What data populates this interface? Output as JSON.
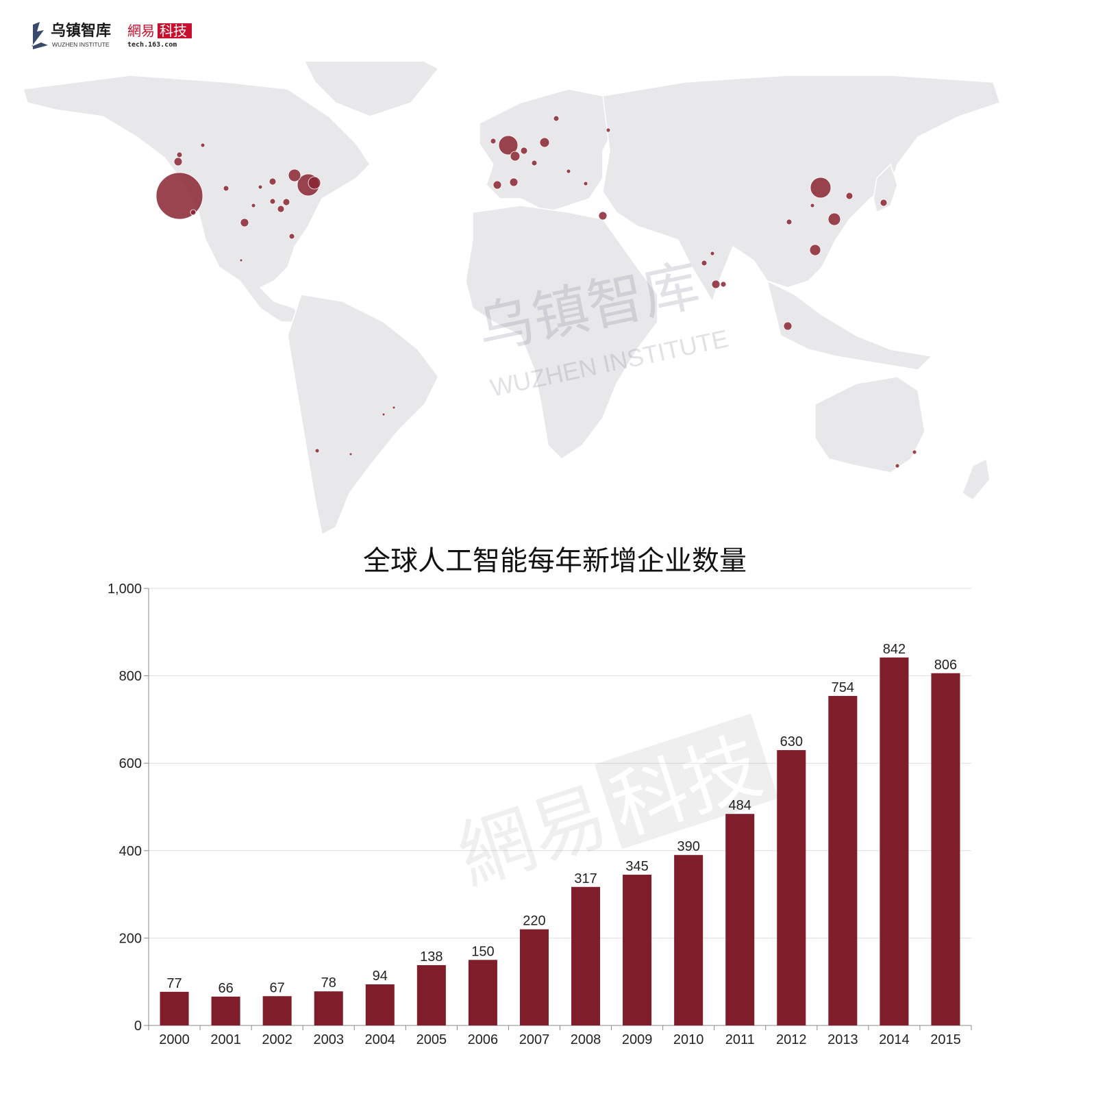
{
  "header": {
    "logo_primary_cn": "乌镇智库",
    "logo_primary_en": "WUZHEN INSTITUTE",
    "logo_secondary_cn_a": "網易",
    "logo_secondary_cn_b": "科技",
    "logo_secondary_url": "tech.163.com"
  },
  "watermarks": {
    "map_cn": "乌镇智库",
    "map_en": "WUZHEN INSTITUTE",
    "chart_cn_a": "網易",
    "chart_cn_b": "科技"
  },
  "colors": {
    "bar": "#7f1d2b",
    "bubble": "#8a2433",
    "land": "#e8e8ea",
    "grid": "#dddddd"
  },
  "map_data": {
    "type": "bubble-map",
    "land_color": "#e8e8ea",
    "bubble_color": "#8a2433",
    "hubs": [
      {
        "region": "US West Coast",
        "size": "largest"
      },
      {
        "region": "US East Coast",
        "size": "large"
      },
      {
        "region": "Western Europe",
        "size": "large"
      },
      {
        "region": "China",
        "size": "large"
      },
      {
        "region": "India",
        "size": "medium"
      },
      {
        "region": "Japan",
        "size": "small"
      },
      {
        "region": "Singapore",
        "size": "small"
      },
      {
        "region": "Australia",
        "size": "small"
      }
    ]
  },
  "chart_data": {
    "type": "bar",
    "title": "全球人工智能每年新增企业数量",
    "xlabel": "",
    "ylabel": "",
    "categories": [
      "2000",
      "2001",
      "2002",
      "2003",
      "2004",
      "2005",
      "2006",
      "2007",
      "2008",
      "2009",
      "2010",
      "2011",
      "2012",
      "2013",
      "2014",
      "2015"
    ],
    "values": [
      77,
      66,
      67,
      78,
      94,
      138,
      150,
      220,
      317,
      345,
      390,
      484,
      630,
      754,
      842,
      806
    ],
    "ylim": [
      0,
      1000
    ],
    "yticks": [
      0,
      200,
      400,
      600,
      800,
      1000
    ],
    "ytick_labels": [
      "0",
      "200",
      "400",
      "600",
      "800",
      "1,000"
    ],
    "grid": true,
    "legend": "none"
  }
}
